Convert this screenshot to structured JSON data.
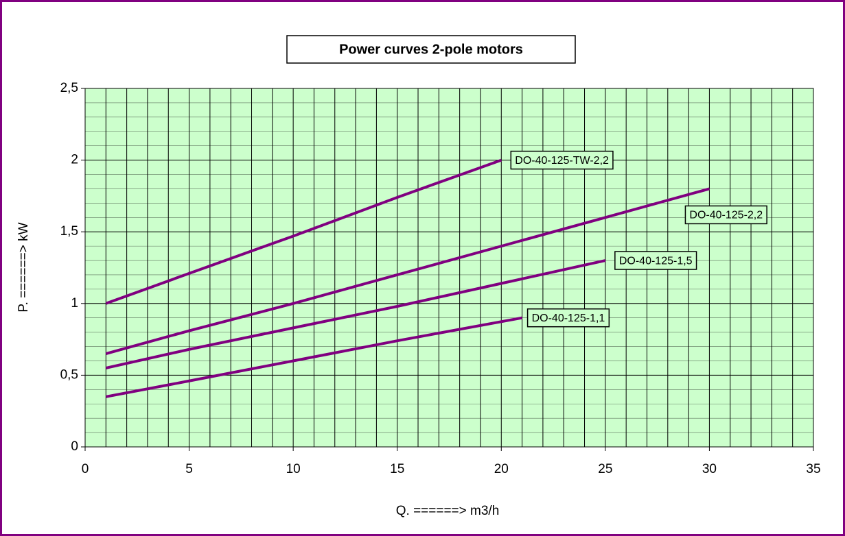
{
  "chart_data": {
    "type": "line",
    "title": "Power curves 2-pole motors",
    "x_label": "Q. ======> m3/h",
    "y_label": "P. ======> kW",
    "xlim": [
      0,
      35
    ],
    "ylim": [
      0,
      2.5
    ],
    "xticks": [
      0,
      5,
      10,
      15,
      20,
      25,
      30,
      35
    ],
    "yticks": [
      0,
      {
        "value": 0.5,
        "label": "0,5"
      },
      1,
      {
        "value": 1.5,
        "label": "1,5"
      },
      2,
      {
        "value": 2.5,
        "label": "2,5"
      }
    ],
    "grid": {
      "x_step": 1,
      "y_step": 0.1
    },
    "background": "#ccffcc",
    "series": [
      {
        "name": "DO-40-125-TW-2,2",
        "color": "#800080",
        "x": [
          1,
          5,
          10,
          15,
          20
        ],
        "values": [
          1.0,
          1.21,
          1.47,
          1.74,
          2.0
        ]
      },
      {
        "name": "DO-40-125-2,2",
        "color": "#800080",
        "x": [
          1,
          5,
          10,
          15,
          20,
          25,
          30
        ],
        "values": [
          0.65,
          0.81,
          1.0,
          1.2,
          1.4,
          1.6,
          1.8
        ]
      },
      {
        "name": "DO-40-125-1,5",
        "color": "#800080",
        "x": [
          1,
          5,
          10,
          15,
          20,
          25
        ],
        "values": [
          0.55,
          0.68,
          0.83,
          0.98,
          1.14,
          1.3
        ]
      },
      {
        "name": "DO-40-125-1,1",
        "color": "#800080",
        "x": [
          1,
          5,
          10,
          15,
          21
        ],
        "values": [
          0.35,
          0.46,
          0.6,
          0.74,
          0.9
        ]
      }
    ]
  }
}
